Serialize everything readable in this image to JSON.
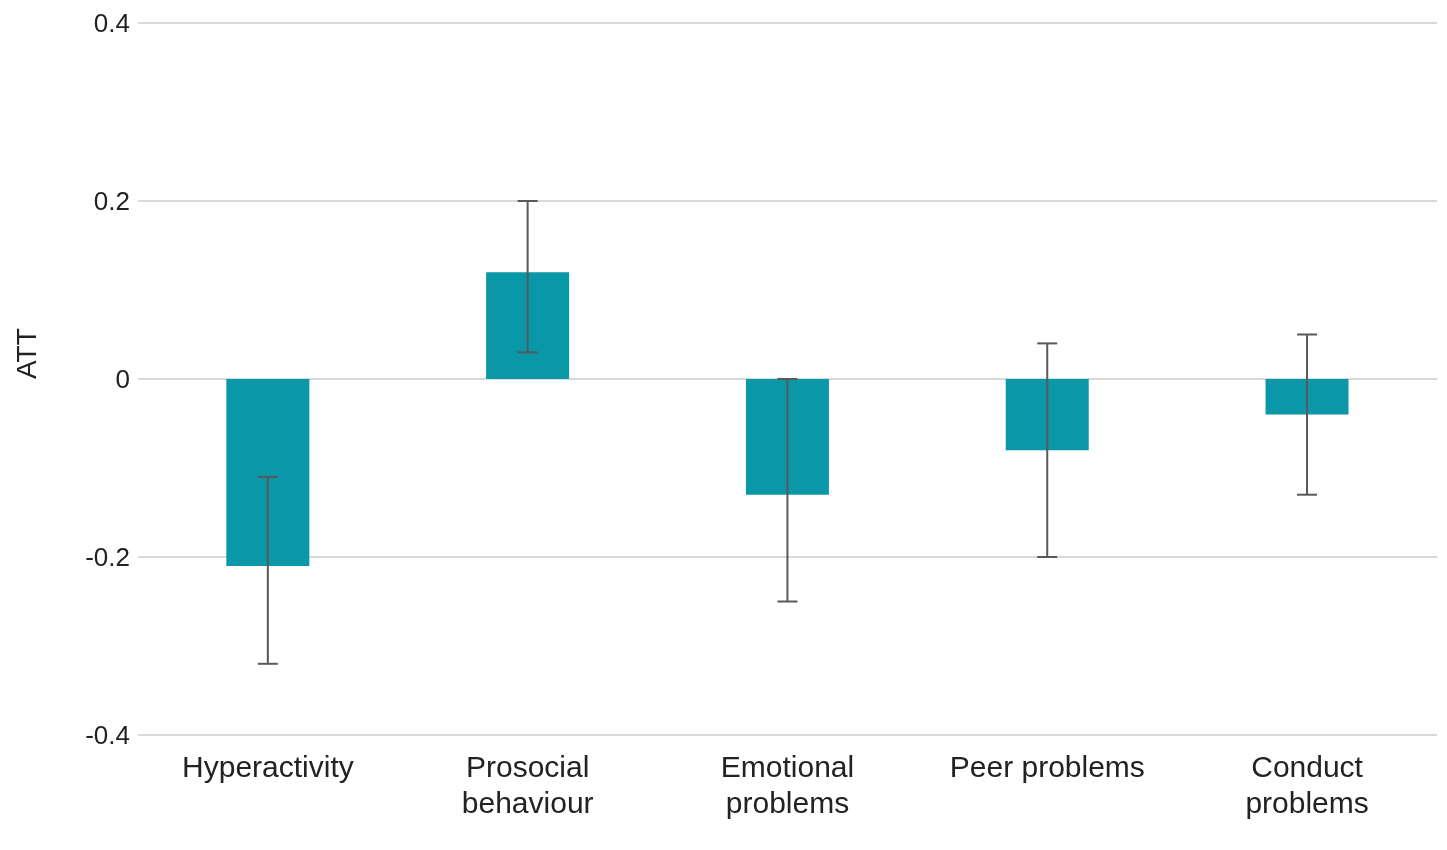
{
  "chart_data": {
    "type": "bar",
    "ylabel": "ATT",
    "categories": [
      "Hyperactivity",
      "Prosocial behaviour",
      "Emotional problems",
      "Peer problems",
      "Conduct problems"
    ],
    "values": [
      -0.21,
      0.12,
      -0.13,
      -0.08,
      -0.04
    ],
    "errors": [
      [
        -0.32,
        -0.11
      ],
      [
        0.03,
        0.2
      ],
      [
        -0.25,
        0
      ],
      [
        -0.2,
        0.04
      ],
      [
        -0.13,
        0.05
      ]
    ],
    "color": "#0a97a8",
    "ylim": [
      -0.4,
      0.4
    ],
    "yticks": [
      -0.4,
      -0.2,
      0,
      0.2,
      0.4
    ],
    "grid": "y",
    "legend": false
  }
}
